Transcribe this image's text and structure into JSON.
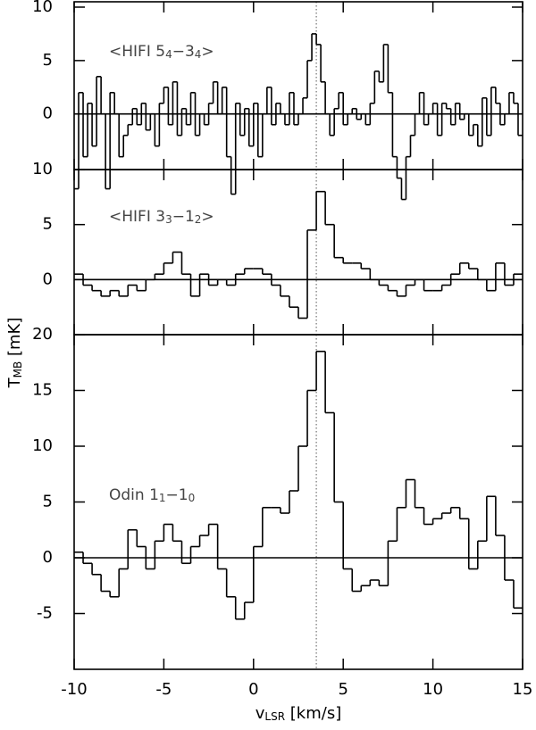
{
  "chart_data": [
    {
      "type": "line",
      "drawstyle": "steps-mid",
      "color": "#000000",
      "annotation": [
        "<HIFI 5",
        "4",
        "−3",
        "4",
        ">"
      ],
      "ylim": [
        -5.2,
        10.5
      ],
      "yticks": [
        0,
        5,
        10
      ],
      "hline": 0,
      "vline": 3.5,
      "x": [
        -9.875,
        -9.625,
        -9.375,
        -9.125,
        -8.875,
        -8.625,
        -8.375,
        -8.125,
        -7.875,
        -7.625,
        -7.375,
        -7.125,
        -6.875,
        -6.625,
        -6.375,
        -6.125,
        -5.875,
        -5.625,
        -5.375,
        -5.125,
        -4.875,
        -4.625,
        -4.375,
        -4.125,
        -3.875,
        -3.625,
        -3.375,
        -3.125,
        -2.875,
        -2.625,
        -2.375,
        -2.125,
        -1.875,
        -1.625,
        -1.375,
        -1.125,
        -0.875,
        -0.625,
        -0.375,
        -0.125,
        0.125,
        0.375,
        0.625,
        0.875,
        1.125,
        1.375,
        1.625,
        1.875,
        2.125,
        2.375,
        2.625,
        2.875,
        3.125,
        3.375,
        3.625,
        3.875,
        4.125,
        4.375,
        4.625,
        4.875,
        5.125,
        5.375,
        5.625,
        5.875,
        6.125,
        6.375,
        6.625,
        6.875,
        7.125,
        7.375,
        7.625,
        7.875,
        8.125,
        8.375,
        8.625,
        8.875,
        9.125,
        9.375,
        9.625,
        9.875,
        10.125,
        10.375,
        10.625,
        10.875,
        11.125,
        11.375,
        11.625,
        11.875,
        12.125,
        12.375,
        12.625,
        12.875,
        13.125,
        13.375,
        13.625,
        13.875,
        14.125,
        14.375,
        14.625,
        14.875
      ],
      "values": [
        -7,
        2,
        -4,
        1,
        -3,
        3.5,
        0,
        -7,
        2,
        0,
        -4,
        -2,
        -1,
        0.5,
        -1,
        1,
        -1.5,
        0,
        -3,
        1,
        2.5,
        -1,
        3,
        -2,
        0.5,
        -1,
        2,
        -2,
        0,
        -1,
        1,
        3,
        0,
        2.5,
        -4,
        -7.5,
        1,
        -2,
        0.5,
        -3,
        1,
        -4,
        0,
        2.5,
        -1,
        1,
        0,
        -1,
        2,
        -1,
        0,
        1.5,
        5,
        7.5,
        6.5,
        3,
        0,
        -2,
        0.5,
        2,
        -1,
        0,
        0.5,
        -0.5,
        0,
        -1,
        1,
        4,
        3,
        6.5,
        2,
        -4,
        -6,
        -8,
        -4,
        -2,
        0,
        2,
        -1,
        0,
        1,
        -2,
        1,
        0.5,
        -1,
        1,
        -0.5,
        0,
        -2,
        -1,
        -3,
        1.5,
        -2,
        2.5,
        1,
        -1,
        0,
        2,
        1,
        -2
      ]
    },
    {
      "type": "line",
      "drawstyle": "steps-mid",
      "color": "#000000",
      "annotation": [
        "<HIFI 3",
        "3",
        "−1",
        "2",
        ">"
      ],
      "ylabel": [
        "T",
        "MB",
        " [mK]"
      ],
      "ylim": [
        -5,
        10
      ],
      "yticks": [
        0,
        5,
        10
      ],
      "hline": 0,
      "vline": 3.5,
      "x": [
        -9.75,
        -9.25,
        -8.75,
        -8.25,
        -7.75,
        -7.25,
        -6.75,
        -6.25,
        -5.75,
        -5.25,
        -4.75,
        -4.25,
        -3.75,
        -3.25,
        -2.75,
        -2.25,
        -1.75,
        -1.25,
        -0.75,
        -0.25,
        0.25,
        0.75,
        1.25,
        1.75,
        2.25,
        2.75,
        3.25,
        3.75,
        4.25,
        4.75,
        5.25,
        5.75,
        6.25,
        6.75,
        7.25,
        7.75,
        8.25,
        8.75,
        9.25,
        9.75,
        10.25,
        10.75,
        11.25,
        11.75,
        12.25,
        12.75,
        13.25,
        13.75,
        14.25,
        14.75
      ],
      "values": [
        0.5,
        -0.5,
        -1,
        -1.5,
        -1,
        -1.5,
        -0.5,
        -1,
        0,
        0.5,
        1.5,
        2.5,
        0.5,
        -1.5,
        0.5,
        -0.5,
        0,
        -0.5,
        0.5,
        1,
        1,
        0.5,
        -0.5,
        -1.5,
        -2.5,
        -3.5,
        4.5,
        8,
        5,
        2,
        1.5,
        1.5,
        1,
        0,
        -0.5,
        -1,
        -1.5,
        -0.5,
        0,
        -1,
        -1,
        -0.5,
        0.5,
        1.5,
        1,
        0,
        -1,
        1.5,
        -0.5,
        0.5
      ]
    },
    {
      "type": "line",
      "drawstyle": "steps-mid",
      "color": "#000000",
      "annotation": [
        "Odin 1",
        "1",
        "−1",
        "0",
        ""
      ],
      "xlabel": [
        "v",
        "LSR",
        " [km/s]"
      ],
      "xlim": [
        -10,
        15
      ],
      "xticks": [
        -10,
        -5,
        0,
        5,
        10,
        15
      ],
      "ylim": [
        -10,
        20
      ],
      "yticks": [
        -5,
        0,
        5,
        10,
        15,
        20
      ],
      "hline": 0,
      "vline": 3.5,
      "x": [
        -9.75,
        -9.25,
        -8.75,
        -8.25,
        -7.75,
        -7.25,
        -6.75,
        -6.25,
        -5.75,
        -5.25,
        -4.75,
        -4.25,
        -3.75,
        -3.25,
        -2.75,
        -2.25,
        -1.75,
        -1.25,
        -0.75,
        -0.25,
        0.25,
        0.75,
        1.25,
        1.75,
        2.25,
        2.75,
        3.25,
        3.75,
        4.25,
        4.75,
        5.25,
        5.75,
        6.25,
        6.75,
        7.25,
        7.75,
        8.25,
        8.75,
        9.25,
        9.75,
        10.25,
        10.75,
        11.25,
        11.75,
        12.25,
        12.75,
        13.25,
        13.75,
        14.25,
        14.75
      ],
      "values": [
        0.5,
        -0.5,
        -1.5,
        -3,
        -3.5,
        -1,
        2.5,
        1,
        -1,
        1.5,
        3,
        1.5,
        -0.5,
        1,
        2,
        3,
        -1,
        -3.5,
        -5.5,
        -4,
        1,
        4.5,
        4.5,
        4,
        6,
        10,
        15,
        18.5,
        13,
        5,
        -1,
        -3,
        -2.5,
        -2,
        -2.5,
        1.5,
        4.5,
        7,
        4.5,
        3,
        3.5,
        4,
        4.5,
        3.5,
        -1,
        1.5,
        5.5,
        2,
        -2,
        -4.5
      ]
    }
  ]
}
